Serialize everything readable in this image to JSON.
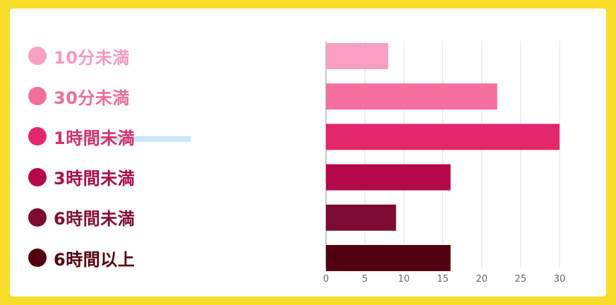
{
  "chart_data": {
    "type": "bar",
    "orientation": "horizontal",
    "categories": [
      "10分未満",
      "30分未満",
      "1時間未満",
      "3時間未満",
      "6時間未満",
      "6時間以上"
    ],
    "values": [
      8,
      22,
      30,
      16,
      9,
      16
    ],
    "colors": [
      "#f9a0c2",
      "#f5709e",
      "#e2286b",
      "#b5084b",
      "#7d0a33",
      "#520010"
    ],
    "label_colors": [
      "#f39bbe",
      "#ec6d99",
      "#d6306a",
      "#a80b48",
      "#800d35",
      "#520010"
    ],
    "xlim": [
      0,
      30
    ],
    "xticks": [
      "0",
      "5",
      "10",
      "15",
      "20",
      "25",
      "30"
    ],
    "grid": true,
    "legend_position": "left",
    "title": "",
    "xlabel": "",
    "ylabel": ""
  }
}
